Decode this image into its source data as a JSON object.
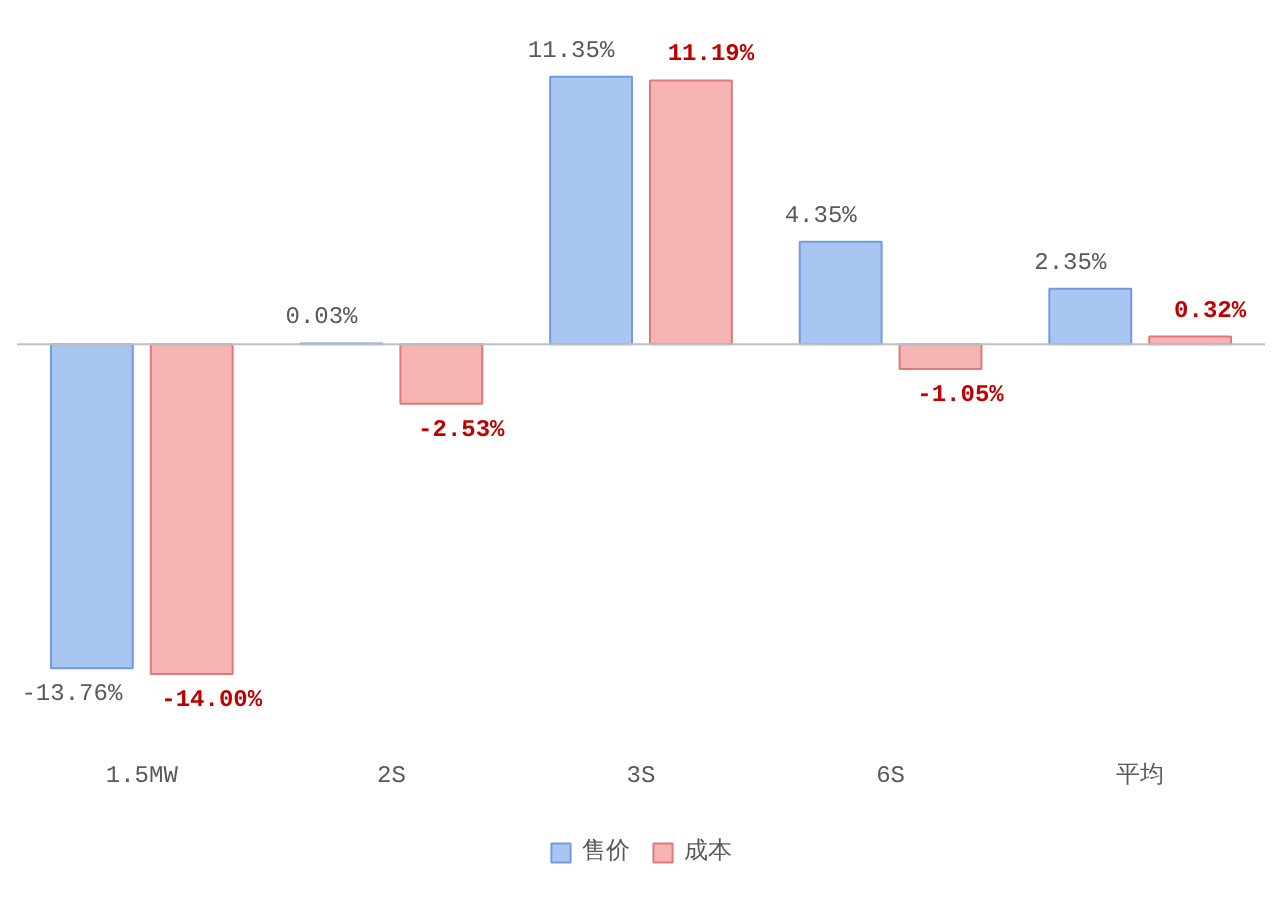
{
  "chart_data": {
    "type": "bar",
    "categories": [
      "1.5MW",
      "2S",
      "3S",
      "6S",
      "平均"
    ],
    "series": [
      {
        "name": "售价",
        "color": "#a9c6f2",
        "values": [
          -13.76,
          0.03,
          11.35,
          4.35,
          2.35
        ],
        "value_labels": [
          "-13.76%",
          "0.03%",
          "11.35%",
          "4.35%",
          "2.35%"
        ]
      },
      {
        "name": "成本",
        "color": "#f5b3b3",
        "values": [
          -14.0,
          -2.53,
          11.19,
          -1.05,
          0.32
        ],
        "value_labels": [
          "-14.00%",
          "-2.53%",
          "11.19%",
          "-1.05%",
          "0.32%"
        ]
      }
    ],
    "legend": "bottom"
  }
}
